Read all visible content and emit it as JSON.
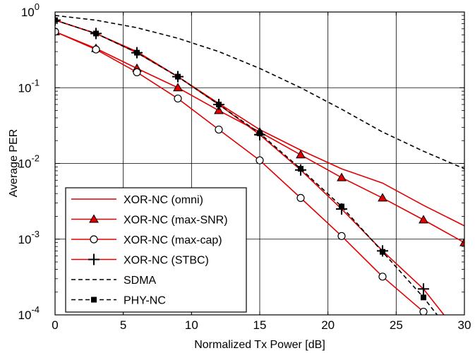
{
  "chart_data": {
    "type": "line",
    "xlabel": "Normalized Tx Power [dB]",
    "ylabel": "Average PER",
    "xlim": [
      0,
      30
    ],
    "ylim": [
      0.0001,
      1
    ],
    "yscale": "log",
    "grid": true,
    "legend_position": "bottom-left",
    "x_ticks": [
      0,
      5,
      10,
      15,
      20,
      25,
      30
    ],
    "y_ticks": [
      {
        "value": 1,
        "mantissa": "10",
        "exp": "0"
      },
      {
        "value": 0.1,
        "mantissa": "10",
        "exp": "-1"
      },
      {
        "value": 0.01,
        "mantissa": "10",
        "exp": "-2"
      },
      {
        "value": 0.001,
        "mantissa": "10",
        "exp": "-3"
      },
      {
        "value": 0.0001,
        "mantissa": "10",
        "exp": "-4"
      }
    ],
    "series": [
      {
        "name": "XOR-NC (omni)",
        "color": "#e00000",
        "dash": "solid",
        "marker": "none",
        "x": [
          0,
          3,
          6,
          9,
          12,
          15,
          18,
          21,
          24,
          27,
          30
        ],
        "y": [
          0.78,
          0.52,
          0.3,
          0.14,
          0.062,
          0.028,
          0.015,
          0.0085,
          0.0055,
          0.0028,
          0.0015
        ]
      },
      {
        "name": "XOR-NC (max-SNR)",
        "color": "#e00000",
        "dash": "solid",
        "marker": "triangle",
        "x": [
          0,
          3,
          6,
          9,
          12,
          15,
          18,
          21,
          24,
          27,
          30
        ],
        "y": [
          0.55,
          0.33,
          0.18,
          0.1,
          0.05,
          0.026,
          0.013,
          0.0065,
          0.0035,
          0.0018,
          0.0009
        ]
      },
      {
        "name": "XOR-NC (max-cap)",
        "color": "#e00000",
        "dash": "solid",
        "marker": "circle",
        "x": [
          0,
          3,
          6,
          9,
          12,
          15,
          18,
          21,
          24,
          27
        ],
        "y": [
          0.55,
          0.32,
          0.16,
          0.072,
          0.028,
          0.011,
          0.0035,
          0.0011,
          0.00032,
          0.00011
        ]
      },
      {
        "name": "XOR-NC (STBC)",
        "color": "#e00000",
        "dash": "solid",
        "marker": "plus",
        "x": [
          0,
          3,
          6,
          9,
          12,
          15,
          18,
          21,
          24,
          27,
          28.5
        ],
        "y": [
          0.78,
          0.52,
          0.29,
          0.14,
          0.06,
          0.024,
          0.0082,
          0.0025,
          0.0007,
          0.00022,
          0.0001
        ]
      },
      {
        "name": "SDMA",
        "color": "#000000",
        "dash": "dash",
        "marker": "none",
        "x": [
          0,
          3,
          6,
          9,
          12,
          15,
          18,
          21,
          24,
          27,
          30
        ],
        "y": [
          0.9,
          0.78,
          0.62,
          0.45,
          0.3,
          0.18,
          0.1,
          0.052,
          0.026,
          0.0145,
          0.0085
        ]
      },
      {
        "name": "PHY-NC",
        "color": "#000000",
        "dash": "dash",
        "marker": "square",
        "x": [
          0,
          3,
          6,
          9,
          12,
          15,
          18,
          21,
          24,
          27,
          28
        ],
        "y": [
          0.78,
          0.52,
          0.29,
          0.14,
          0.06,
          0.025,
          0.0085,
          0.0027,
          0.00068,
          0.00017,
          0.0001
        ]
      }
    ]
  }
}
